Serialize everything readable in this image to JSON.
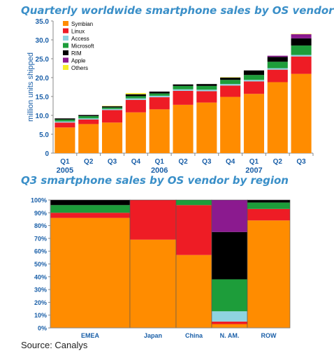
{
  "source": "Source: Canalys",
  "colors": {
    "Symbian": "#ff8c00",
    "Linux": "#ee1c25",
    "Access": "#8fd3e0",
    "Microsoft": "#1d9d3a",
    "RIM": "#000000",
    "Apple": "#8b1a8f",
    "Others": "#f7ee2a"
  },
  "chart_data": [
    {
      "type": "bar",
      "stacked": true,
      "title": "Quarterly worldwide smartphone sales by OS vendor",
      "ylabel": "million units shipped",
      "xlabel": "",
      "ylim": [
        0,
        35
      ],
      "yticks": [
        "0",
        "5.0",
        "10.0",
        "15.0",
        "20.0",
        "25.0",
        "30.0",
        "35.0"
      ],
      "grid": false,
      "legend": "top-left",
      "categories": [
        "Q1",
        "Q2",
        "Q3",
        "Q4",
        "Q1",
        "Q2",
        "Q3",
        "Q4",
        "Q1",
        "Q2",
        "Q3"
      ],
      "years": [
        {
          "label": "2005",
          "index": 0
        },
        {
          "label": "2006",
          "index": 4
        },
        {
          "label": "2007",
          "index": 8
        }
      ],
      "series": [
        {
          "name": "Symbian",
          "values": [
            6.8,
            7.7,
            8.1,
            10.8,
            11.6,
            12.8,
            13.4,
            14.9,
            15.7,
            18.8,
            21.0
          ]
        },
        {
          "name": "Linux",
          "values": [
            1.3,
            1.2,
            3.3,
            3.3,
            3.2,
            3.7,
            3.0,
            3.0,
            3.3,
            3.3,
            4.6
          ]
        },
        {
          "name": "Access",
          "values": [
            0.3,
            0.3,
            0.3,
            0.4,
            0.4,
            0.4,
            0.4,
            0.4,
            0.4,
            0.4,
            0.4
          ]
        },
        {
          "name": "Microsoft",
          "values": [
            0.5,
            0.6,
            0.4,
            0.6,
            0.6,
            0.9,
            1.0,
            1.1,
            1.3,
            1.7,
            2.5
          ]
        },
        {
          "name": "RIM",
          "values": [
            0.3,
            0.3,
            0.3,
            0.5,
            0.5,
            0.4,
            0.5,
            0.6,
            1.2,
            1.3,
            1.9
          ]
        },
        {
          "name": "Apple",
          "values": [
            0,
            0,
            0,
            0,
            0,
            0,
            0,
            0,
            0,
            0.3,
            1.1
          ]
        },
        {
          "name": "Others",
          "values": [
            0,
            0,
            0.1,
            0.3,
            0,
            0,
            0,
            0.1,
            0,
            0,
            0.1
          ]
        }
      ]
    },
    {
      "type": "bar",
      "stacked": true,
      "percent": true,
      "variable_width": true,
      "title": "Q3 smartphone sales by OS vendor by region",
      "xlabel": "",
      "ylabel": "",
      "ylim": [
        0,
        100
      ],
      "yticks": [
        "0%",
        "10%",
        "20%",
        "30%",
        "40%",
        "50%",
        "60%",
        "70%",
        "80%",
        "90%",
        "100%"
      ],
      "grid": false,
      "categories": [
        "EMEA",
        "Japan",
        "China",
        "N. AM.",
        "ROW"
      ],
      "widths": [
        114,
        66,
        51,
        51,
        61
      ],
      "series": [
        {
          "name": "Symbian",
          "values": [
            86,
            69,
            57,
            3,
            84
          ]
        },
        {
          "name": "Linux",
          "values": [
            4,
            31,
            39,
            2,
            9
          ]
        },
        {
          "name": "Access",
          "values": [
            0,
            0,
            0,
            8,
            0
          ]
        },
        {
          "name": "Microsoft",
          "values": [
            6,
            0,
            4,
            25,
            5
          ]
        },
        {
          "name": "RIM",
          "values": [
            4,
            0,
            0,
            37,
            2
          ]
        },
        {
          "name": "Apple",
          "values": [
            0,
            0,
            0,
            25,
            0
          ]
        }
      ]
    }
  ]
}
